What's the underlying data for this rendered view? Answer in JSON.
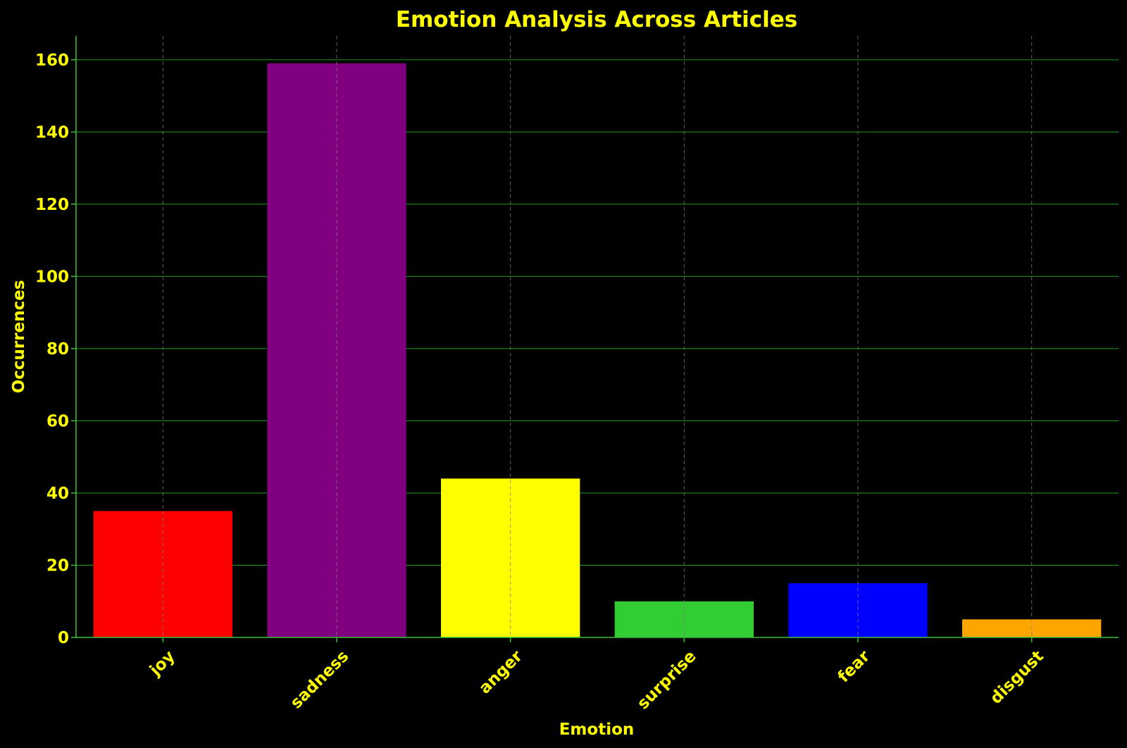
{
  "chart_data": {
    "type": "bar",
    "title": "Emotion Analysis Across Articles",
    "xlabel": "Emotion",
    "ylabel": "Occurrences",
    "categories": [
      "joy",
      "sadness",
      "anger",
      "surprise",
      "fear",
      "disgust"
    ],
    "values": [
      35,
      159,
      44,
      10,
      15,
      5
    ],
    "colors": [
      "#ff0000",
      "#800080",
      "#ffff00",
      "#32cd32",
      "#0000ff",
      "#ffa500"
    ],
    "ylim": [
      0,
      166.6
    ],
    "yticks": [
      0,
      20,
      40,
      60,
      80,
      100,
      120,
      140,
      160
    ],
    "grid": true,
    "legend": "none",
    "theme": {
      "background": "#000000",
      "text_color": "#ffff00",
      "axis_color": "#3cc03c",
      "grid_color": "#1f9e1f"
    }
  }
}
